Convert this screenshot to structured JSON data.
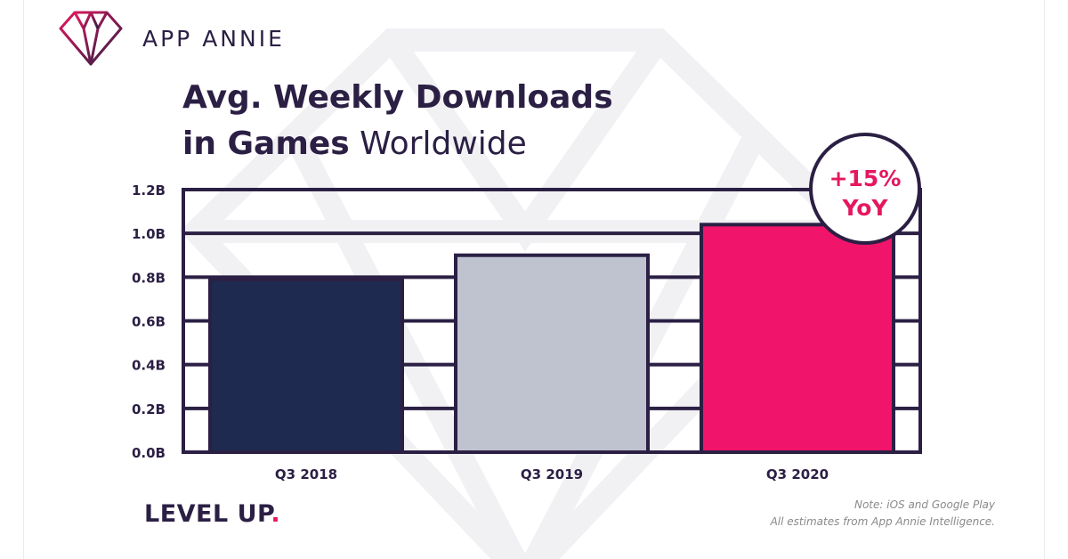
{
  "brand": {
    "name": "APP ANNIE"
  },
  "title": {
    "line1": "Avg. Weekly Downloads",
    "line2_strong": "in Games",
    "line2_light": "Worldwide"
  },
  "callout": {
    "line1": "+15%",
    "line2": "YoY"
  },
  "tagline": {
    "text": "LEVEL UP",
    "dot": "."
  },
  "note": {
    "line1": "Note: iOS and Google Play",
    "line2": "All estimates from App Annie Intelligence."
  },
  "colors": {
    "ink": "#2b1f44",
    "accent": "#e5175f",
    "bar_2018": "#1e2a4f",
    "bar_2019": "#bfc2cf",
    "bar_2020": "#f0156a"
  },
  "chart_data": {
    "type": "bar",
    "title": "Avg. Weekly Downloads in Games Worldwide",
    "categories": [
      "Q3 2018",
      "Q3 2019",
      "Q3 2020"
    ],
    "values": [
      0.79,
      0.9,
      1.04
    ],
    "value_unit": "B",
    "bar_colors": [
      "#1e2a4f",
      "#bfc2cf",
      "#f0156a"
    ],
    "ylim": [
      0,
      1.2
    ],
    "yticks": [
      "0.0B",
      "0.2B",
      "0.4B",
      "0.6B",
      "0.8B",
      "1.0B",
      "1.2B"
    ],
    "xlabel": "",
    "ylabel": "",
    "grid": true,
    "annotation": "+15% YoY"
  }
}
